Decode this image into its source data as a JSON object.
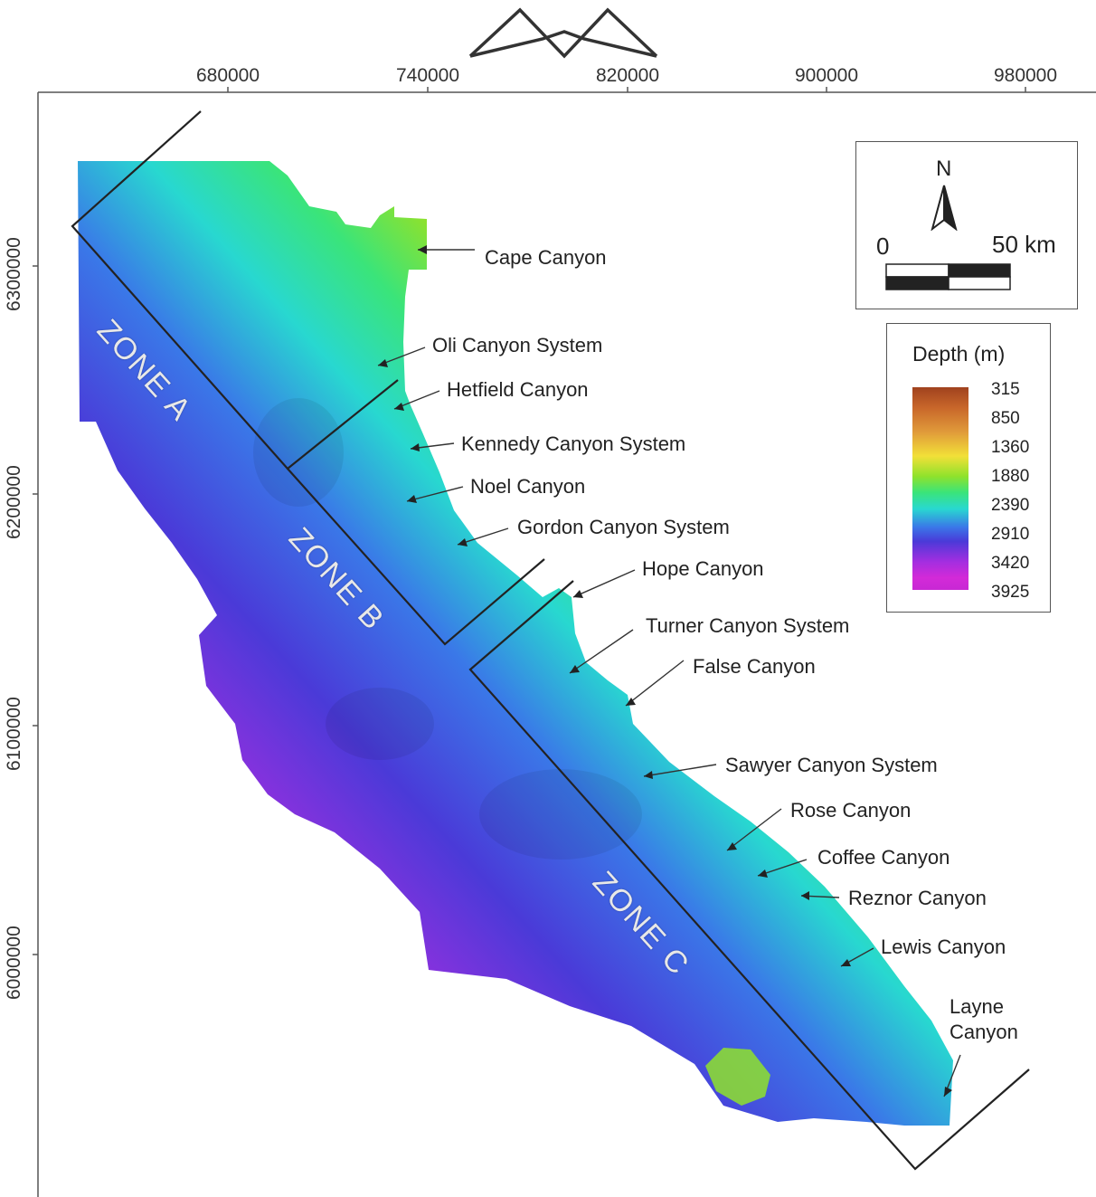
{
  "x_ticks": [
    "680000",
    "740000",
    "820000",
    "900000",
    "980000"
  ],
  "y_ticks": [
    "6300000",
    "6200000",
    "6100000",
    "6000000"
  ],
  "zones": [
    "ZONE A",
    "ZONE B",
    "ZONE C"
  ],
  "canyons": {
    "cape": "Cape Canyon",
    "oli": "Oli Canyon System",
    "hetfield": "Hetfield Canyon",
    "kennedy": "Kennedy Canyon System",
    "noel": "Noel Canyon",
    "gordon": "Gordon Canyon System",
    "hope": "Hope Canyon",
    "turner": "Turner Canyon System",
    "false": "False Canyon",
    "sawyer": "Sawyer Canyon System",
    "rose": "Rose Canyon",
    "coffee": "Coffee Canyon",
    "reznor": "Reznor Canyon",
    "lewis": "Lewis Canyon",
    "layne_1": "Layne",
    "layne_2": "Canyon"
  },
  "scale": {
    "north": "N",
    "zero": "0",
    "fifty": "50 km"
  },
  "legend": {
    "title": "Depth (m)",
    "values": [
      "315",
      "850",
      "1360",
      "1880",
      "2390",
      "2910",
      "3420",
      "3925"
    ]
  },
  "colors": {
    "shallow": "#a0421e",
    "mid": "#28d8d0",
    "deep": "#c828d4"
  }
}
